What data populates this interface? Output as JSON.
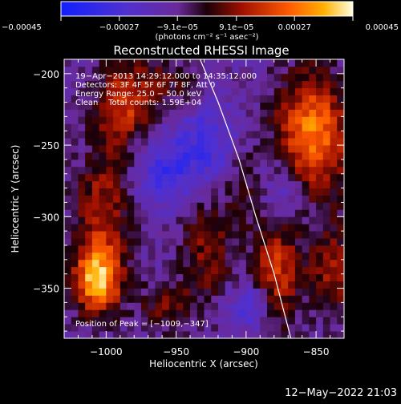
{
  "chart_data": {
    "type": "heatmap",
    "title": "Reconstructed RHESSI Image",
    "xlabel": "Heliocentric X (arcsec)",
    "ylabel": "Heliocentric Y (arcsec)",
    "xlim": [
      -1030,
      -830
    ],
    "ylim": [
      -385,
      -190
    ],
    "x_ticks": [
      -1000,
      -950,
      -900,
      -850
    ],
    "x_tick_labels": [
      "−1000",
      "−950",
      "−900",
      "−850"
    ],
    "y_ticks": [
      -200,
      -250,
      -300,
      -350
    ],
    "y_tick_labels": [
      "−200",
      "−250",
      "−300",
      "−350"
    ],
    "colorbar": {
      "range": [
        -0.00045,
        0.00045
      ],
      "ticks": [
        -0.00045,
        -0.00027,
        -9.1e-05,
        9.1e-05,
        0.00027,
        0.00045
      ],
      "tick_labels": [
        "−0.00045",
        "−0.00027",
        "−9.1e−05",
        "9.1e−05",
        "0.00027",
        "0.00045"
      ],
      "unit_label": "(photons cm⁻² s⁻¹ asec⁻²)"
    },
    "info_lines": [
      "19−Apr−2013 14:29:12.000 to 14:35:12.000",
      "Detectors: 3F 4F 5F 6F 7F 8F, Att 0",
      "Energy Range: 25.0 − 50.0 keV",
      "Clean    Total counts: 1.59E+04"
    ],
    "peak_label": "Position of Peak = [−1009,−347]",
    "peak": [
      -1009,
      -347
    ],
    "limb_curve": [
      [
        -935,
        -185
      ],
      [
        -920,
        -220
      ],
      [
        -905,
        -260
      ],
      [
        -893,
        -300
      ],
      [
        -880,
        -340
      ],
      [
        -868,
        -385
      ]
    ],
    "sources": [
      {
        "x": -990,
        "y": -225,
        "sx": 14,
        "sy": 22,
        "v": 0.00026
      },
      {
        "x": -1005,
        "y": -300,
        "sx": 14,
        "sy": 30,
        "v": 0.00024
      },
      {
        "x": -1009,
        "y": -347,
        "sx": 12,
        "sy": 16,
        "v": 0.00045
      },
      {
        "x": -960,
        "y": -210,
        "sx": 20,
        "sy": 14,
        "v": 0.00012
      },
      {
        "x": -930,
        "y": -325,
        "sx": 14,
        "sy": 28,
        "v": 0.00018
      },
      {
        "x": -880,
        "y": -340,
        "sx": 12,
        "sy": 28,
        "v": 0.00028
      },
      {
        "x": -855,
        "y": -245,
        "sx": 18,
        "sy": 30,
        "v": 0.0004
      },
      {
        "x": -840,
        "y": -340,
        "sx": 12,
        "sy": 22,
        "v": 0.00022
      },
      {
        "x": -960,
        "y": -365,
        "sx": 14,
        "sy": 12,
        "v": 0.00016
      },
      {
        "x": -905,
        "y": -280,
        "sx": 10,
        "sy": 20,
        "v": 0.0001
      },
      {
        "x": -960,
        "y": -270,
        "sx": 16,
        "sy": 18,
        "v": -0.0002
      },
      {
        "x": -930,
        "y": -250,
        "sx": 14,
        "sy": 20,
        "v": -0.00018
      },
      {
        "x": -875,
        "y": -285,
        "sx": 12,
        "sy": 18,
        "v": -0.00016
      },
      {
        "x": -900,
        "y": -365,
        "sx": 12,
        "sy": 12,
        "v": -0.00018
      }
    ]
  },
  "footer": {
    "timestamp": "12−May−2022 21:03"
  }
}
